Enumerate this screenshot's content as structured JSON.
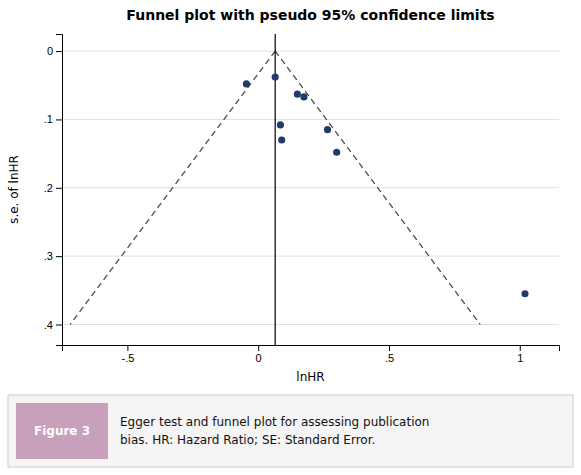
{
  "chart_data": {
    "type": "scatter",
    "title": "Funnel plot with pseudo 95% confidence limits",
    "x_label": "lnHR",
    "y_label": "s.e. of lnHR",
    "xlim": [
      -0.75,
      1.15
    ],
    "ylim": [
      0.43,
      -0.025
    ],
    "xticks": [
      {
        "value": -0.5,
        "label": "-.5"
      },
      0,
      {
        "value": 0.5,
        "label": ".5"
      },
      1
    ],
    "yticks": [
      0,
      {
        "value": 0.1,
        "label": ".1"
      },
      {
        "value": 0.2,
        "label": ".2"
      },
      {
        "value": 0.3,
        "label": ".3"
      },
      {
        "value": 0.4,
        "label": ".4"
      }
    ],
    "grid": true,
    "series": [
      {
        "type": "scatter",
        "marker": "circle",
        "color": "#1e3d6b",
        "x": [
          -0.045,
          0.065,
          0.15,
          0.175,
          0.085,
          0.265,
          0.09,
          0.3,
          1.02
        ],
        "values": [
          0.048,
          0.038,
          0.063,
          0.067,
          0.108,
          0.115,
          0.13,
          0.148,
          0.355
        ]
      },
      {
        "type": "line",
        "line_style": "dashed",
        "color": "#444444",
        "x": [
          0.065,
          -0.719
        ],
        "values": [
          0.0,
          0.4
        ]
      },
      {
        "type": "line",
        "line_style": "dashed",
        "color": "#444444",
        "x": [
          0.065,
          0.849
        ],
        "values": [
          0.0,
          0.4
        ]
      },
      {
        "type": "line",
        "line_style": "solid",
        "color": "#000000",
        "x": [
          0.065,
          0.065
        ],
        "values": [
          0.43,
          -0.025
        ]
      }
    ],
    "annotations": [
      "Figure 3",
      "Egger test and funnel plot for assessing publication\nbias. HR: Hazard Ratio; SE: Standard Error."
    ]
  }
}
